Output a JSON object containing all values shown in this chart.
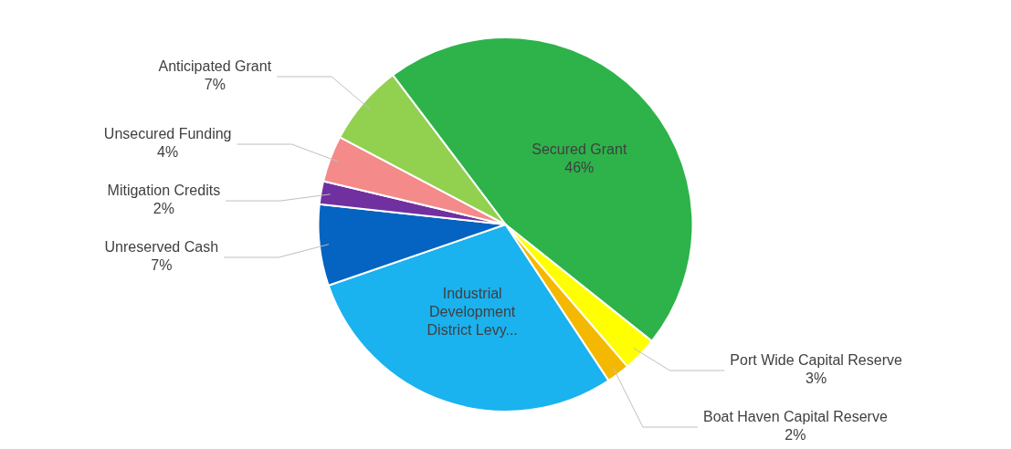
{
  "chart_data": {
    "type": "pie",
    "categories": [
      "Secured Grant",
      "Port Wide Capital Reserve",
      "Boat Haven Capital Reserve",
      "Industrial Development District Levy...",
      "Unreserved Cash",
      "Mitigation Credits",
      "Unsecured Funding",
      "Anticipated Grant"
    ],
    "values": [
      46,
      3,
      2,
      29,
      7,
      2,
      4,
      7
    ],
    "value_labels": [
      "46%",
      "3%",
      "2%",
      null,
      "7%",
      "2%",
      "4%",
      "7%"
    ],
    "colors": [
      "#2db34a",
      "#ffff00",
      "#f5b800",
      "#1ab2ef",
      "#0563c1",
      "#7030a0",
      "#f48a8a",
      "#92d050"
    ],
    "legend": false
  }
}
